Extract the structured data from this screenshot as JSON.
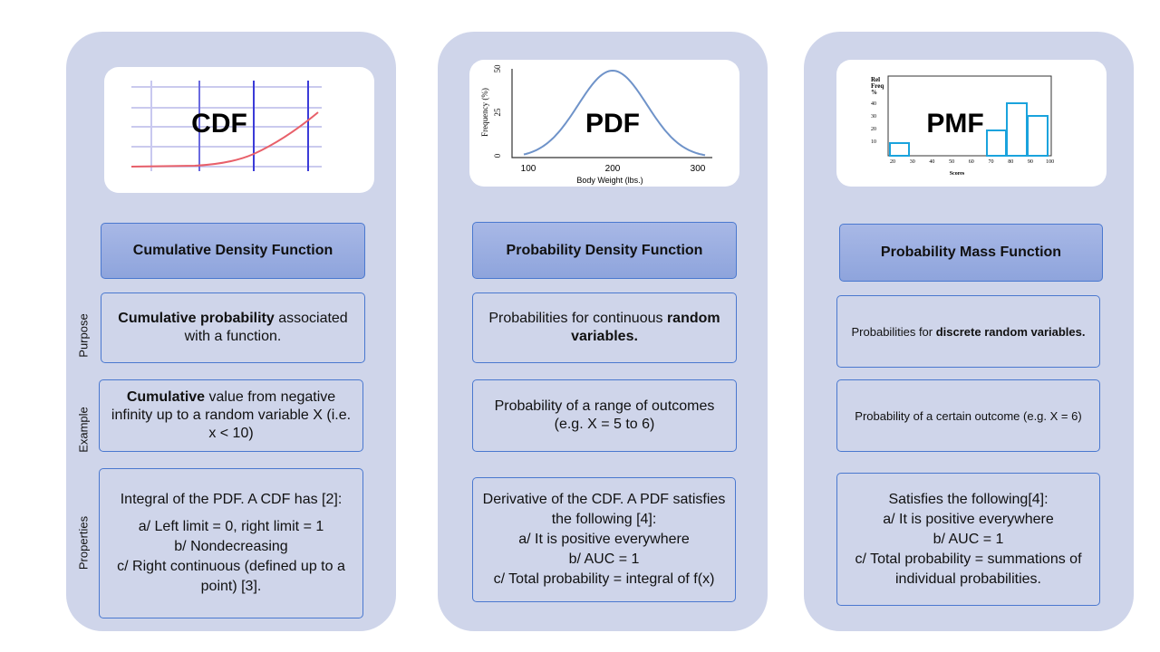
{
  "side_labels": [
    "Purpose",
    "Example",
    "Properties"
  ],
  "columns": [
    {
      "image": {
        "label": "CDF"
      },
      "header": "Cumulative Density Function",
      "purpose": [
        {
          "text": "Cumulative probability",
          "bold": true
        },
        {
          "text": " associated with a function."
        }
      ],
      "example": [
        {
          "text": "Cumulative",
          "bold": true
        },
        {
          "text": " value from negative infinity up to a random variable X (i.e. x < 10)"
        }
      ],
      "properties": [
        "Integral of the PDF. A CDF has [2]:",
        "a/ Left limit = 0, right limit = 1",
        "b/ Nondecreasing",
        "c/ Right continuous (defined up to a point) [3]."
      ]
    },
    {
      "image": {
        "label": "PDF",
        "yticks": [
          50,
          25,
          0
        ],
        "y_label": "Frequency (%)",
        "xticks": [
          100,
          200,
          300
        ],
        "x_label": "Body Weight (lbs.)"
      },
      "header": "Probability Density Function",
      "purpose": [
        {
          "text": "Probabilities for continuous "
        },
        {
          "text": "random variables.",
          "bold": true
        }
      ],
      "example": [
        {
          "text": "Probability of a range of outcomes (e.g. X = 5 to 6)"
        }
      ],
      "properties": [
        "Derivative of the CDF. A PDF satisfies the following [4]:",
        "a/ It is positive everywhere",
        "b/ AUC = 1",
        "c/ Total probability = integral of f(x)"
      ]
    },
    {
      "image": {
        "label": "PMF",
        "y_label": [
          "Rel",
          "Freq",
          "%"
        ],
        "yticks": [
          40,
          30,
          20,
          10
        ],
        "xticks": [
          20,
          30,
          40,
          50,
          60,
          70,
          80,
          90,
          100
        ],
        "x_label": "Scores"
      },
      "header": "Probability Mass Function",
      "purpose": [
        {
          "text": "Probabilities for "
        },
        {
          "text": "discrete random variables.",
          "bold": true
        }
      ],
      "example": [
        {
          "text": "Probability of a certain outcome (e.g. X = 6)"
        }
      ],
      "properties": [
        "Satisfies the following[4]:",
        "a/ It is positive everywhere",
        "b/ AUC = 1",
        "c/ Total probability = summations of individual probabilities."
      ]
    }
  ]
}
